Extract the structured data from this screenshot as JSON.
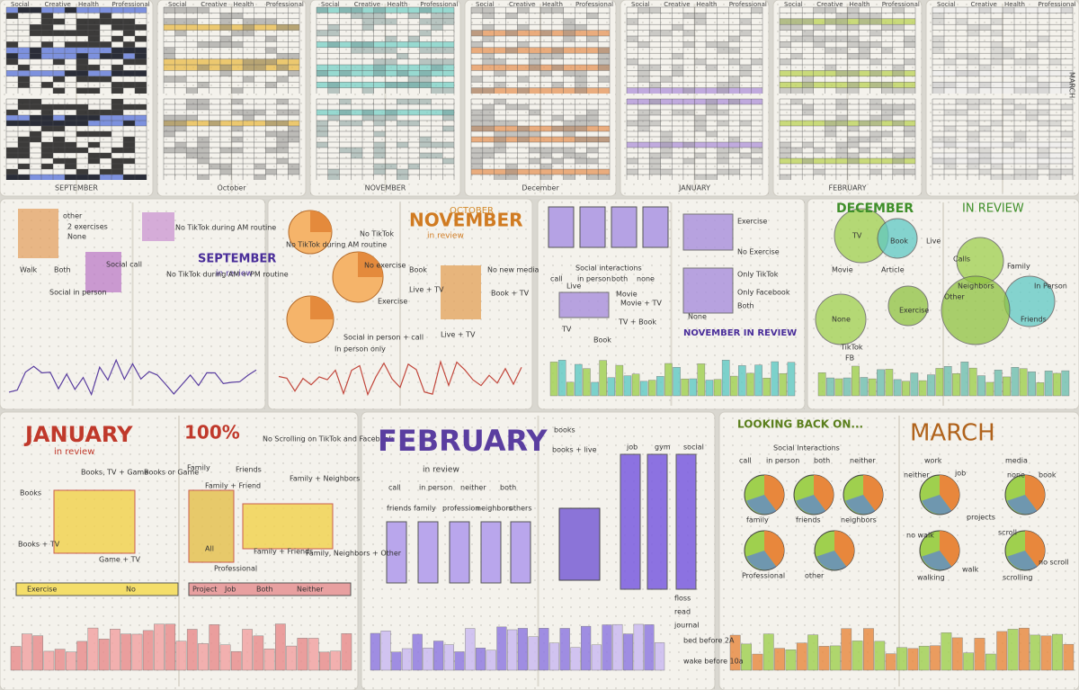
{
  "tracker_row": {
    "months": [
      "SEPTEMBER",
      "October",
      "NOVEMBER",
      "December",
      "JANUARY",
      "FEBRUARY",
      "MARCH"
    ],
    "headers": [
      "Social",
      "Creative",
      "Health",
      "Professional"
    ]
  },
  "reviews": [
    {
      "title": "SEPTEMBER",
      "subtitle": "in review",
      "labels": [
        "other",
        "2 exercises",
        "None",
        "Social call",
        "Both",
        "Walk",
        "Social in person",
        "No TikTok during AM routine",
        "No TikTok during AM + PM routine"
      ]
    },
    {
      "kicker": "OCTOBER",
      "title": "NOVEMBER",
      "subtitle": "in review",
      "labels": [
        "No TikTok during AM routine",
        "No TikTok",
        "No exercise",
        "Exercise",
        "Social in person + call",
        "In person only",
        "Book",
        "Live + TV",
        "No new media",
        "Book + TV",
        "Live + TV"
      ]
    },
    {
      "title": "NOVEMBER IN REVIEW",
      "labels": [
        "Exercise",
        "No Exercise",
        "Only TikTok",
        "Only Facebook",
        "Both",
        "None",
        "Social interactions",
        "call",
        "in person",
        "both",
        "none",
        "Live",
        "Movie",
        "Movie + TV",
        "TV + Book",
        "TV",
        "Book"
      ]
    },
    {
      "title": "DECEMBER",
      "subtitle": "IN REVIEW",
      "labels": [
        "TV",
        "Book",
        "Live",
        "Movie",
        "Article",
        "Calls",
        "Family",
        "In Person",
        "Neighbors",
        "Other",
        "Friends",
        "Exercise",
        "None",
        "TikTok",
        "FB"
      ]
    }
  ],
  "bottom": [
    {
      "title": "JANUARY",
      "subtitle": "in review",
      "headline": "100%",
      "note": "No Scrolling on TikTok and Facebook",
      "labels": [
        "Books",
        "Books + TV",
        "Books, TV + Game",
        "Books or Game",
        "Game + TV",
        "Family",
        "Friends",
        "Family + Friend",
        "Family + Neighbors",
        "All",
        "Professional",
        "Family + Friends",
        "Family, Neighbors + Other",
        "Exercise",
        "No",
        "Project",
        "Job",
        "Both",
        "Neither"
      ]
    },
    {
      "title": "FEBRUARY",
      "subtitle": "in review",
      "labels": [
        "call",
        "in person",
        "neither",
        "both",
        "friends",
        "family",
        "profession",
        "neighbors",
        "others",
        "books",
        "books + live",
        "job",
        "gym",
        "social",
        "floss",
        "read",
        "journal",
        "bed before 2A",
        "wake before 10a"
      ]
    },
    {
      "kicker": "LOOKING BACK ON...",
      "title": "MARCH",
      "labels": [
        "Social Interactions",
        "call",
        "in person",
        "both",
        "neither",
        "family",
        "friends",
        "neighbors",
        "Professional",
        "other",
        "work",
        "media",
        "neither",
        "job",
        "none",
        "book",
        "projects",
        "no walk",
        "walk",
        "walking",
        "scroll",
        "no scroll",
        "scrolling"
      ]
    }
  ]
}
